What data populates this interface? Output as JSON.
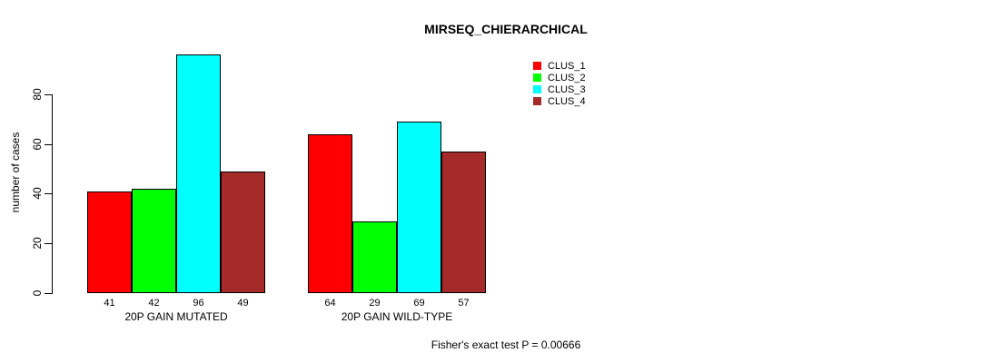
{
  "page": {
    "background": "#ffffff",
    "text_color": "#000000"
  },
  "chart_data": {
    "type": "bar",
    "title": "MIRSEQ_CHIERARCHICAL",
    "ylabel": "number of cases",
    "xlabel": "",
    "yticks": [
      0,
      20,
      40,
      60,
      80
    ],
    "ylim": [
      0,
      96
    ],
    "grid": false,
    "legend_position": "top-right",
    "categories": [
      "20P GAIN MUTATED",
      "20P GAIN WILD-TYPE"
    ],
    "series": [
      {
        "name": "CLUS_1",
        "color": "#FF0000",
        "values": [
          41,
          64
        ]
      },
      {
        "name": "CLUS_2",
        "color": "#00FF00",
        "values": [
          42,
          29
        ]
      },
      {
        "name": "CLUS_3",
        "color": "#00FFFF",
        "values": [
          96,
          69
        ]
      },
      {
        "name": "CLUS_4",
        "color": "#A52A2A",
        "values": [
          49,
          57
        ]
      }
    ],
    "bar_value_labels": [
      [
        41,
        42,
        96,
        49
      ],
      [
        64,
        29,
        69,
        57
      ]
    ],
    "annotation": "Fisher's exact test P = 0.00666",
    "axis_color": "#000000",
    "bar_border_color": "#000000"
  }
}
